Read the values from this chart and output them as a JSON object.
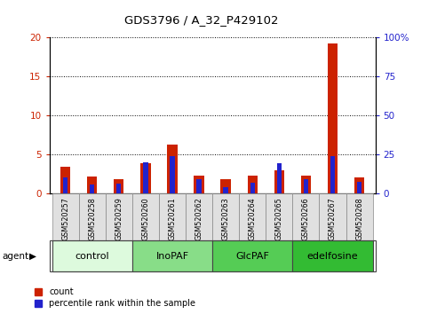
{
  "title": "GDS3796 / A_32_P429102",
  "samples": [
    "GSM520257",
    "GSM520258",
    "GSM520259",
    "GSM520260",
    "GSM520261",
    "GSM520262",
    "GSM520263",
    "GSM520264",
    "GSM520265",
    "GSM520266",
    "GSM520267",
    "GSM520268"
  ],
  "count_values": [
    3.4,
    2.1,
    1.8,
    3.8,
    6.3,
    2.2,
    1.8,
    2.3,
    2.9,
    2.2,
    19.3,
    2.0
  ],
  "percentile_values": [
    10.0,
    5.5,
    6.0,
    20.0,
    24.0,
    9.0,
    4.0,
    6.5,
    19.0,
    9.0,
    24.0,
    7.5
  ],
  "groups": [
    {
      "label": "control",
      "start": 0,
      "end": 3,
      "color": "#ddfadd"
    },
    {
      "label": "InoPAF",
      "start": 3,
      "end": 6,
      "color": "#88dd88"
    },
    {
      "label": "GlcPAF",
      "start": 6,
      "end": 9,
      "color": "#55cc55"
    },
    {
      "label": "edelfosine",
      "start": 9,
      "end": 12,
      "color": "#33bb33"
    }
  ],
  "ylim_left": [
    0,
    20
  ],
  "ylim_right": [
    0,
    100
  ],
  "yticks_left": [
    0,
    5,
    10,
    15,
    20
  ],
  "yticks_right": [
    0,
    25,
    50,
    75,
    100
  ],
  "ytick_labels_right": [
    "0",
    "25",
    "50",
    "75",
    "100%"
  ],
  "count_color": "#cc2200",
  "percentile_color": "#2222cc",
  "legend_count": "count",
  "legend_percentile": "percentile rank within the sample"
}
